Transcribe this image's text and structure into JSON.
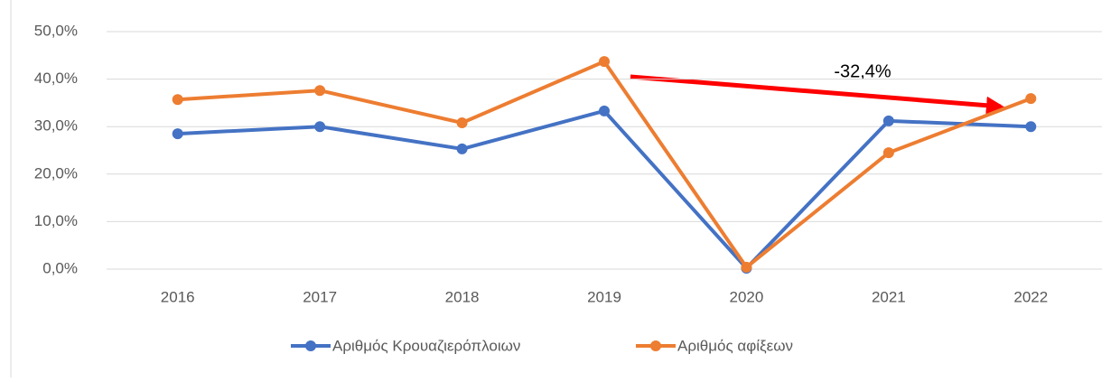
{
  "chart_data": {
    "type": "line",
    "categories": [
      "2016",
      "2017",
      "2018",
      "2019",
      "2020",
      "2021",
      "2022"
    ],
    "series": [
      {
        "name": "Αριθμός Κρουαζιερόπλοιων",
        "color": "#4472c4",
        "values": [
          28.5,
          30.0,
          25.3,
          33.3,
          0.2,
          31.2,
          30.0
        ]
      },
      {
        "name": "Αριθμός αφίξεων",
        "color": "#ed7d31",
        "values": [
          35.7,
          37.6,
          30.8,
          43.7,
          0.4,
          24.5,
          35.9
        ]
      }
    ],
    "annotations": [
      "-32,4%"
    ],
    "ylim": [
      0,
      50
    ],
    "yticks": [
      {
        "value": 0,
        "label": "0,0%"
      },
      {
        "value": 10,
        "label": "10,0%"
      },
      {
        "value": 20,
        "label": "20,0%"
      },
      {
        "value": 30,
        "label": "30,0%"
      },
      {
        "value": 40,
        "label": "40,0%"
      },
      {
        "value": 50,
        "label": "50,0%"
      }
    ],
    "grid": true,
    "legend": "bottom"
  }
}
